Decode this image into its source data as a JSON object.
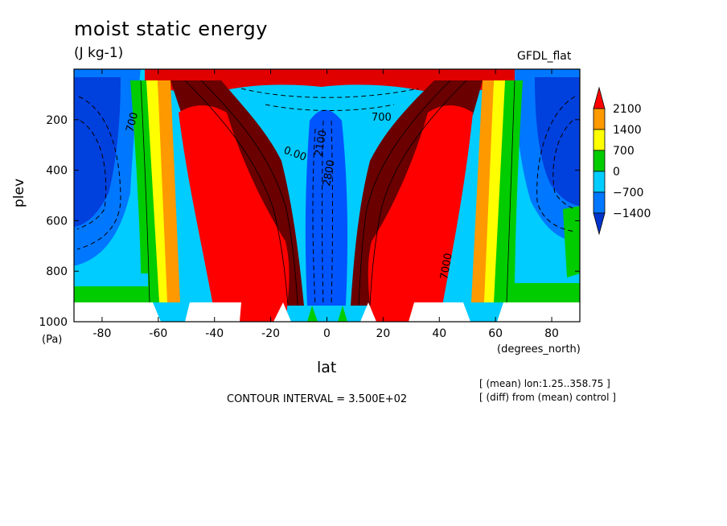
{
  "chart_data": {
    "type": "heatmap",
    "title": "moist static energy",
    "units": "(J kg-1)",
    "dataset_label": "GFDL_flat",
    "xlabel": "lat",
    "x_units": "(degrees_north)",
    "ylabel": "plev",
    "y_units": "(Pa)",
    "xlim": [
      -90,
      90
    ],
    "ylim": [
      1000,
      0
    ],
    "x_ticks": [
      -80,
      -60,
      -40,
      -20,
      0,
      20,
      40,
      60,
      80
    ],
    "y_ticks": [
      200,
      400,
      600,
      800,
      1000
    ],
    "colorbar": {
      "levels": [
        2100,
        1400,
        700,
        0,
        -700,
        -1400
      ],
      "colors": [
        "#ff0000",
        "#ff9900",
        "#ffff00",
        "#00cc00",
        "#00ccff",
        "#0077ff",
        "#0033cc"
      ]
    },
    "contour_labels": [
      "700",
      "700",
      "7000",
      "2800",
      "2100",
      "0.00"
    ],
    "contour_interval_text": "CONTOUR INTERVAL = 3.500E+02",
    "notes": [
      "[ (mean) lon:1.25..358.75 ]",
      "[ (diff) from (mean) control ]"
    ],
    "grid": false
  }
}
